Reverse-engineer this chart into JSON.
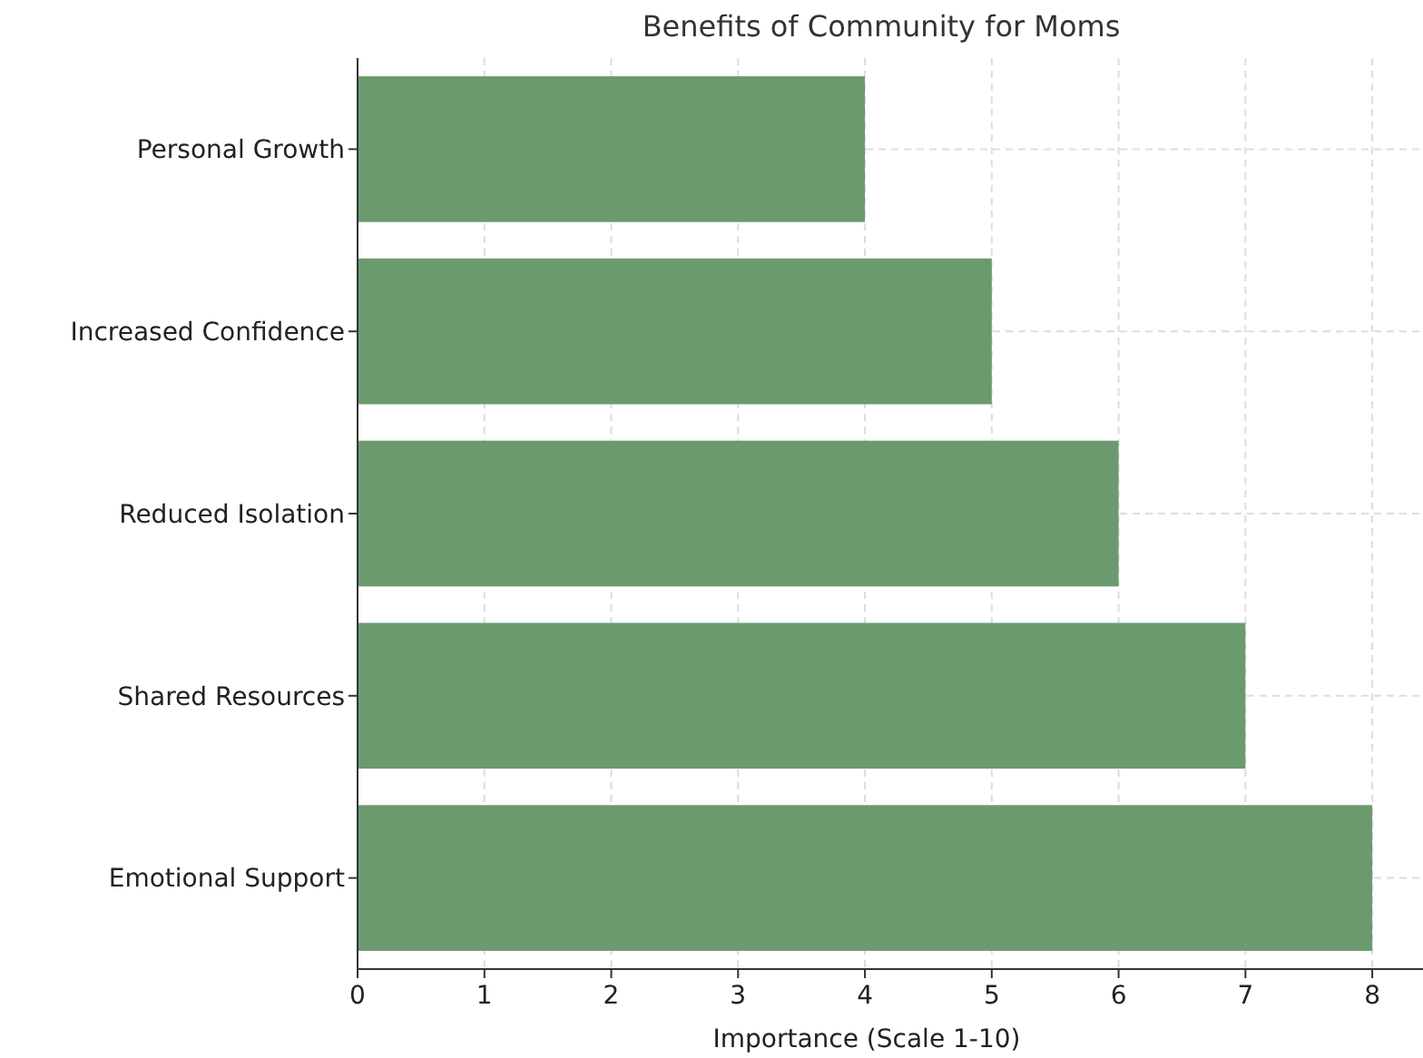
{
  "chart_data": {
    "type": "bar",
    "orientation": "horizontal",
    "title": "Benefits of Community for Moms",
    "xlabel": "Importance (Scale 1-10)",
    "categories": [
      "Personal Growth",
      "Increased Confidence",
      "Reduced Isolation",
      "Shared Resources",
      "Emotional Support"
    ],
    "values": [
      4,
      5,
      6,
      7,
      8
    ],
    "color": "#6b9a6e",
    "xlim": [
      0,
      8.4
    ],
    "xticks": [
      0,
      1,
      2,
      3,
      4,
      5,
      6,
      7,
      8
    ],
    "grid": true
  }
}
